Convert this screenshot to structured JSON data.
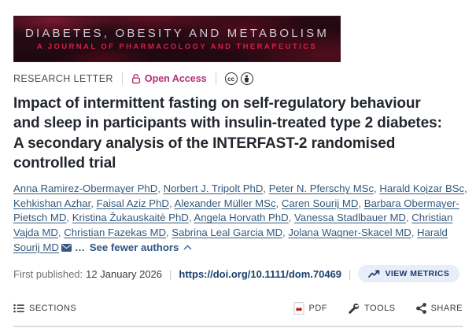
{
  "banner": {
    "title": "DIABETES, OBESITY AND METABOLISM",
    "subtitle": "A JOURNAL OF PHARMACOLOGY AND THERAPEUTICS"
  },
  "meta": {
    "article_type": "RESEARCH LETTER",
    "open_access_label": "Open Access",
    "license_icons": [
      "cc-icon",
      "attribution-icon"
    ],
    "cc_text": "cc"
  },
  "article": {
    "title": "Impact of intermittent fasting on self-regulatory behaviour\nand sleep in participants with insulin-treated type 2 diabetes:\nA secondary analysis of the INTERFAST-2 randomised\ncontrolled trial"
  },
  "authors": {
    "list": [
      "Anna Ramirez-Obermayer PhD",
      "Norbert J. Tripolt PhD",
      "Peter N. Pferschy MSc",
      "Harald Kojzar BSc",
      "Kehkishan Azhar",
      "Faisal Aziz PhD",
      "Alexander Müller MSc",
      "Caren Sourij MD",
      "Barbara Obermayer-Pietsch MD",
      "Kristina Žukauskaitė PhD",
      "Angela Horvath PhD",
      "Vanessa Stadlbauer MD",
      "Christian Vajda MD",
      "Christian Fazekas MD",
      "Sabrina Leal Garcia MD",
      "Jolana Wagner-Skacel MD"
    ],
    "corresponding": "Harald Sourij MD",
    "ellipsis": "…",
    "toggle_label": "See fewer authors"
  },
  "published": {
    "label": "First published:",
    "date": "12 January 2026",
    "doi": "https://doi.org/10.1111/dom.70469",
    "metrics_label": "VIEW METRICS"
  },
  "footer": {
    "sections_label": "SECTIONS",
    "pdf_label": "PDF",
    "tools_label": "TOOLS",
    "share_label": "SHARE"
  },
  "colors": {
    "open_access_pink": "#b62d72",
    "banner_red": "#d42047",
    "author_link_blue": "#33597e",
    "doi_blue": "#1a406f",
    "metrics_pill_bg": "#e8eef8",
    "metrics_text": "#1b3a6b",
    "pdf_red": "#c21b17",
    "title_dark": "#22272e"
  }
}
